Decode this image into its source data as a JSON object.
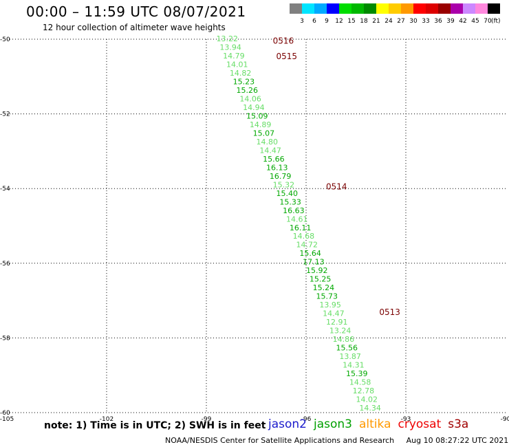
{
  "header": {
    "title": "00:00 – 11:59 UTC 08/07/2021",
    "subtitle": "12 hour collection of altimeter wave heights"
  },
  "legend": {
    "unit": "(ft)",
    "bins": [
      {
        "color": "#808080",
        "label": "3"
      },
      {
        "color": "#00e5ff",
        "label": "6"
      },
      {
        "color": "#00aaff",
        "label": "9"
      },
      {
        "color": "#0000ff",
        "label": "12"
      },
      {
        "color": "#00dd00",
        "label": "15"
      },
      {
        "color": "#00b800",
        "label": "18"
      },
      {
        "color": "#008a00",
        "label": "21"
      },
      {
        "color": "#ffff00",
        "label": "24"
      },
      {
        "color": "#ffcc00",
        "label": "27"
      },
      {
        "color": "#ff9900",
        "label": "30"
      },
      {
        "color": "#ff0000",
        "label": "33"
      },
      {
        "color": "#dd0000",
        "label": "36"
      },
      {
        "color": "#990000",
        "label": "39"
      },
      {
        "color": "#aa00aa",
        "label": "42"
      },
      {
        "color": "#cc88ff",
        "label": "45"
      },
      {
        "color": "#ff88dd",
        "label": "70"
      },
      {
        "color": "#000000",
        "label": ""
      }
    ]
  },
  "map": {
    "lon_range": [
      -105,
      -90
    ],
    "lat_range": [
      -60,
      -50
    ],
    "x_ticks": [
      {
        "value": -105,
        "label": "-105"
      },
      {
        "value": -102,
        "label": "-102"
      },
      {
        "value": -99,
        "label": "-99"
      },
      {
        "value": -96,
        "label": "-96"
      },
      {
        "value": -93,
        "label": "-93"
      },
      {
        "value": -90,
        "label": "-90"
      }
    ],
    "y_ticks": [
      {
        "value": -50,
        "label": "-50"
      },
      {
        "value": -52,
        "label": "-52"
      },
      {
        "value": -54,
        "label": "-54"
      },
      {
        "value": -56,
        "label": "-56"
      },
      {
        "value": -58,
        "label": "-58"
      },
      {
        "value": -60,
        "label": "-60"
      }
    ],
    "grid_style": "dotted",
    "colors": {
      "light": "#66dd66",
      "dark": "#00a800",
      "time_label": "#7a0000"
    },
    "observations": [
      {
        "lat": -50.0,
        "lon": -98.7,
        "swh": "13.22",
        "shade": "light"
      },
      {
        "lat": -50.23,
        "lon": -98.6,
        "swh": "13.94",
        "shade": "light"
      },
      {
        "lat": -50.46,
        "lon": -98.5,
        "swh": "14.79",
        "shade": "light"
      },
      {
        "lat": -50.69,
        "lon": -98.4,
        "swh": "14.01",
        "shade": "light"
      },
      {
        "lat": -50.92,
        "lon": -98.3,
        "swh": "14.82",
        "shade": "light"
      },
      {
        "lat": -51.15,
        "lon": -98.2,
        "swh": "15.23",
        "shade": "dark"
      },
      {
        "lat": -51.38,
        "lon": -98.1,
        "swh": "15.26",
        "shade": "dark"
      },
      {
        "lat": -51.61,
        "lon": -98.0,
        "swh": "14.06",
        "shade": "light"
      },
      {
        "lat": -51.84,
        "lon": -97.9,
        "swh": "14.94",
        "shade": "light"
      },
      {
        "lat": -52.07,
        "lon": -97.8,
        "swh": "15.09",
        "shade": "dark"
      },
      {
        "lat": -52.3,
        "lon": -97.7,
        "swh": "14.89",
        "shade": "light"
      },
      {
        "lat": -52.53,
        "lon": -97.6,
        "swh": "15.07",
        "shade": "dark"
      },
      {
        "lat": -52.76,
        "lon": -97.5,
        "swh": "14.80",
        "shade": "light"
      },
      {
        "lat": -52.99,
        "lon": -97.4,
        "swh": "14.47",
        "shade": "light"
      },
      {
        "lat": -53.22,
        "lon": -97.3,
        "swh": "15.66",
        "shade": "dark"
      },
      {
        "lat": -53.45,
        "lon": -97.2,
        "swh": "16.13",
        "shade": "dark"
      },
      {
        "lat": -53.68,
        "lon": -97.1,
        "swh": "16.79",
        "shade": "dark"
      },
      {
        "lat": -53.91,
        "lon": -97.0,
        "swh": "15.32",
        "shade": "light"
      },
      {
        "lat": -54.14,
        "lon": -96.9,
        "swh": "15.40",
        "shade": "dark"
      },
      {
        "lat": -54.37,
        "lon": -96.8,
        "swh": "15.33",
        "shade": "dark"
      },
      {
        "lat": -54.6,
        "lon": -96.7,
        "swh": "16.63",
        "shade": "dark"
      },
      {
        "lat": -54.83,
        "lon": -96.6,
        "swh": "14.61",
        "shade": "light"
      },
      {
        "lat": -55.06,
        "lon": -96.5,
        "swh": "16.11",
        "shade": "dark"
      },
      {
        "lat": -55.29,
        "lon": -96.4,
        "swh": "14.68",
        "shade": "light"
      },
      {
        "lat": -55.52,
        "lon": -96.3,
        "swh": "14.72",
        "shade": "light"
      },
      {
        "lat": -55.75,
        "lon": -96.2,
        "swh": "15.64",
        "shade": "dark"
      },
      {
        "lat": -55.98,
        "lon": -96.1,
        "swh": "17.13",
        "shade": "dark"
      },
      {
        "lat": -56.21,
        "lon": -96.0,
        "swh": "15.92",
        "shade": "dark"
      },
      {
        "lat": -56.44,
        "lon": -95.9,
        "swh": "15.25",
        "shade": "dark"
      },
      {
        "lat": -56.67,
        "lon": -95.8,
        "swh": "15.24",
        "shade": "dark"
      },
      {
        "lat": -56.9,
        "lon": -95.7,
        "swh": "15.73",
        "shade": "dark"
      },
      {
        "lat": -57.13,
        "lon": -95.6,
        "swh": "13.95",
        "shade": "light"
      },
      {
        "lat": -57.36,
        "lon": -95.5,
        "swh": "14.47",
        "shade": "light"
      },
      {
        "lat": -57.59,
        "lon": -95.4,
        "swh": "12.91",
        "shade": "light"
      },
      {
        "lat": -57.82,
        "lon": -95.3,
        "swh": "13.24",
        "shade": "light"
      },
      {
        "lat": -58.05,
        "lon": -95.2,
        "swh": "14.86",
        "shade": "light"
      },
      {
        "lat": -58.28,
        "lon": -95.1,
        "swh": "15.56",
        "shade": "dark"
      },
      {
        "lat": -58.51,
        "lon": -95.0,
        "swh": "13.87",
        "shade": "light"
      },
      {
        "lat": -58.74,
        "lon": -94.9,
        "swh": "14.31",
        "shade": "light"
      },
      {
        "lat": -58.97,
        "lon": -94.8,
        "swh": "15.39",
        "shade": "dark"
      },
      {
        "lat": -59.2,
        "lon": -94.7,
        "swh": "14.58",
        "shade": "light"
      },
      {
        "lat": -59.43,
        "lon": -94.6,
        "swh": "12.78",
        "shade": "light"
      },
      {
        "lat": -59.66,
        "lon": -94.5,
        "swh": "14.02",
        "shade": "light"
      },
      {
        "lat": -59.89,
        "lon": -94.4,
        "swh": "14.34",
        "shade": "light"
      }
    ],
    "time_labels": [
      {
        "lat": -50.05,
        "lon": -97.0,
        "text": "0516"
      },
      {
        "lat": -50.46,
        "lon": -96.9,
        "text": "0515"
      },
      {
        "lat": -53.95,
        "lon": -95.4,
        "text": "0514"
      },
      {
        "lat": -57.31,
        "lon": -93.8,
        "text": "0513"
      }
    ]
  },
  "note": "note: 1) Time is in UTC; 2) SWH is in feet",
  "satellites": [
    {
      "name": "jason2",
      "color": "#1a1acc"
    },
    {
      "name": "jason3",
      "color": "#00a000"
    },
    {
      "name": "altika",
      "color": "#ff9900"
    },
    {
      "name": "cryosat",
      "color": "#ee0000"
    },
    {
      "name": "s3a",
      "color": "#a00000"
    }
  ],
  "footer": {
    "credit": "NOAA/NESDIS Center for Satellite Applications and Research",
    "timestamp": "Aug 10 08:27:22 UTC 2021"
  }
}
